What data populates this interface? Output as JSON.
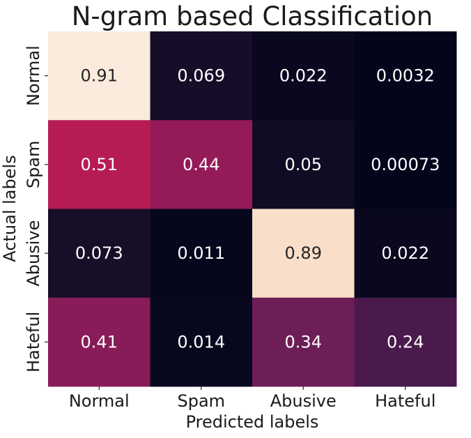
{
  "chart_data": {
    "type": "heatmap",
    "title": "N-gram based Classification",
    "xlabel": "Predicted labels",
    "ylabel": "Actual labels",
    "x_categories": [
      "Normal",
      "Spam",
      "Abusive",
      "Hateful"
    ],
    "y_categories": [
      "Normal",
      "Spam",
      "Abusive",
      "Hateful"
    ],
    "values": [
      [
        0.91,
        0.069,
        0.022,
        0.0032
      ],
      [
        0.51,
        0.44,
        0.05,
        0.00073
      ],
      [
        0.073,
        0.011,
        0.89,
        0.022
      ],
      [
        0.41,
        0.014,
        0.34,
        0.24
      ]
    ],
    "value_labels": [
      [
        "0.91",
        "0.069",
        "0.022",
        "0.0032"
      ],
      [
        "0.51",
        "0.44",
        "0.05",
        "0.00073"
      ],
      [
        "0.073",
        "0.011",
        "0.89",
        "0.022"
      ],
      [
        "0.41",
        "0.014",
        "0.34",
        "0.24"
      ]
    ],
    "colormap": "rocket",
    "vmin": 0.00073,
    "vmax": 0.91,
    "colorbar": false
  }
}
